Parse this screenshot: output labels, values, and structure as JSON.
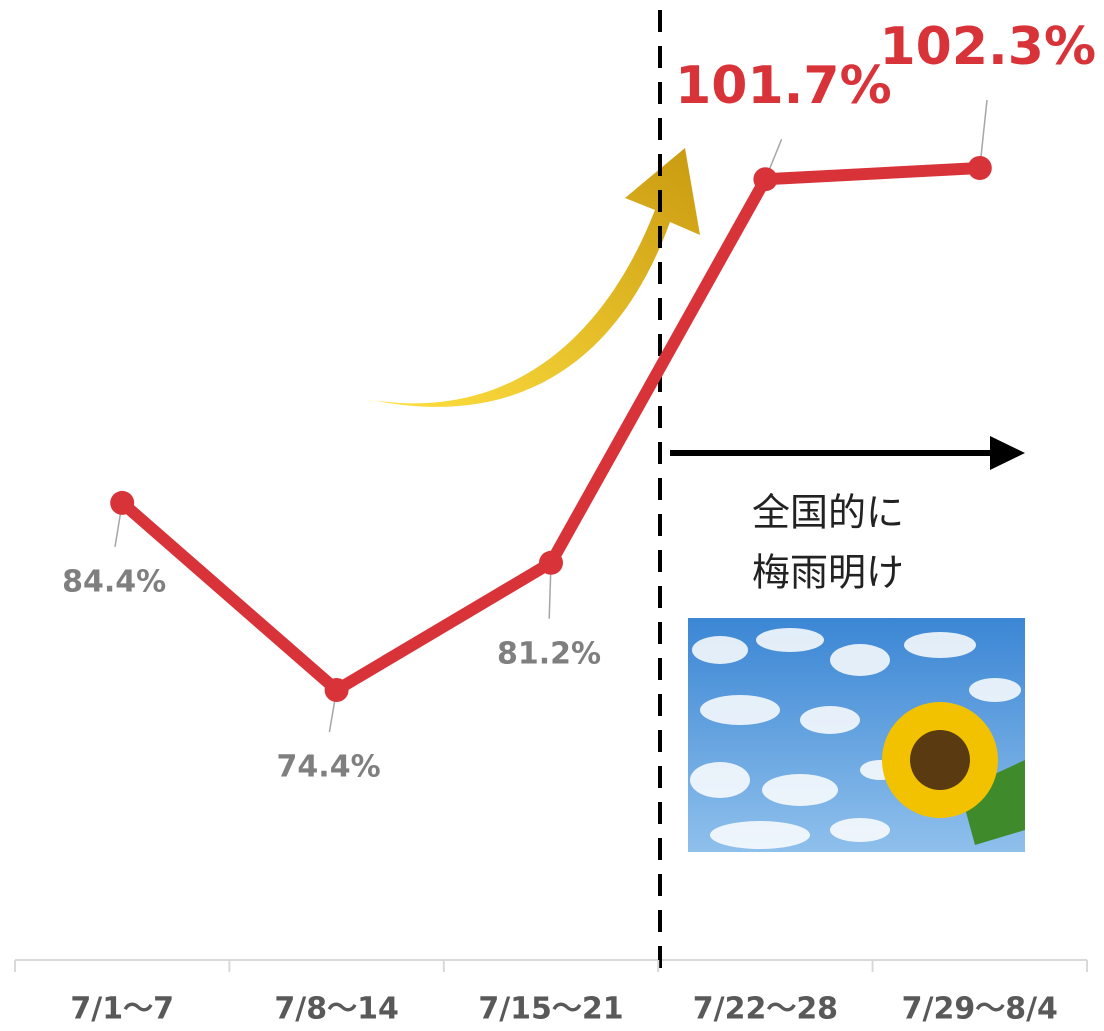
{
  "chart_data": {
    "type": "line",
    "categories": [
      "7/1〜7",
      "7/8〜14",
      "7/15〜21",
      "7/22〜28",
      "7/29〜8/4"
    ],
    "series": [
      {
        "color": "#d9333a",
        "values": [
          84.4,
          74.4,
          81.2,
          101.7,
          102.3
        ],
        "value_labels": [
          "84.4%",
          "74.4%",
          "81.2%",
          "101.7%",
          "102.3%"
        ]
      }
    ],
    "annotation": [
      "全国的に",
      "梅雨明け"
    ]
  }
}
